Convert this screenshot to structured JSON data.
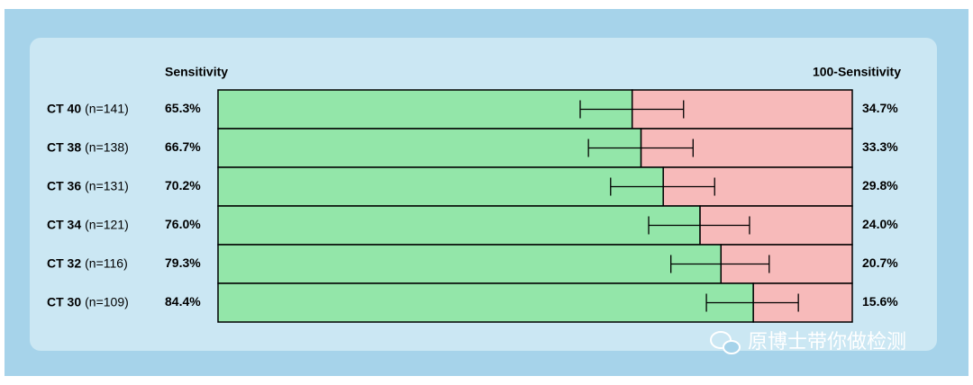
{
  "chart_data": {
    "type": "stacked-bar",
    "categories": [
      "CT 40",
      "CT 38",
      "CT 36",
      "CT 34",
      "CT 32",
      "CT 30"
    ],
    "sample_sizes": [
      "(n=141)",
      "(n=138)",
      "(n=131)",
      "(n=121)",
      "(n=116)",
      "(n=109)"
    ],
    "series": [
      {
        "name": "Sensitivity",
        "color": "#93e6a9",
        "values": [
          65.3,
          66.7,
          70.2,
          76.0,
          79.3,
          84.4
        ],
        "value_labels": [
          "65.3%",
          "66.7%",
          "70.2%",
          "76.0%",
          "79.3%",
          "84.4%"
        ]
      },
      {
        "name": "100-Sensitivity",
        "color": "#f7baba",
        "values": [
          34.7,
          33.3,
          29.8,
          24.0,
          20.7,
          15.6
        ],
        "value_labels": [
          "34.7%",
          "33.3%",
          "29.8%",
          "24.0%",
          "20.7%",
          "15.6%"
        ]
      }
    ],
    "ci_low": [
      57.1,
      58.4,
      61.9,
      67.9,
      71.4,
      77.0
    ],
    "ci_high": [
      73.4,
      74.9,
      78.3,
      83.8,
      86.9,
      91.5
    ],
    "xlim": [
      0,
      100
    ],
    "watermark": "原博士带你做检测"
  }
}
